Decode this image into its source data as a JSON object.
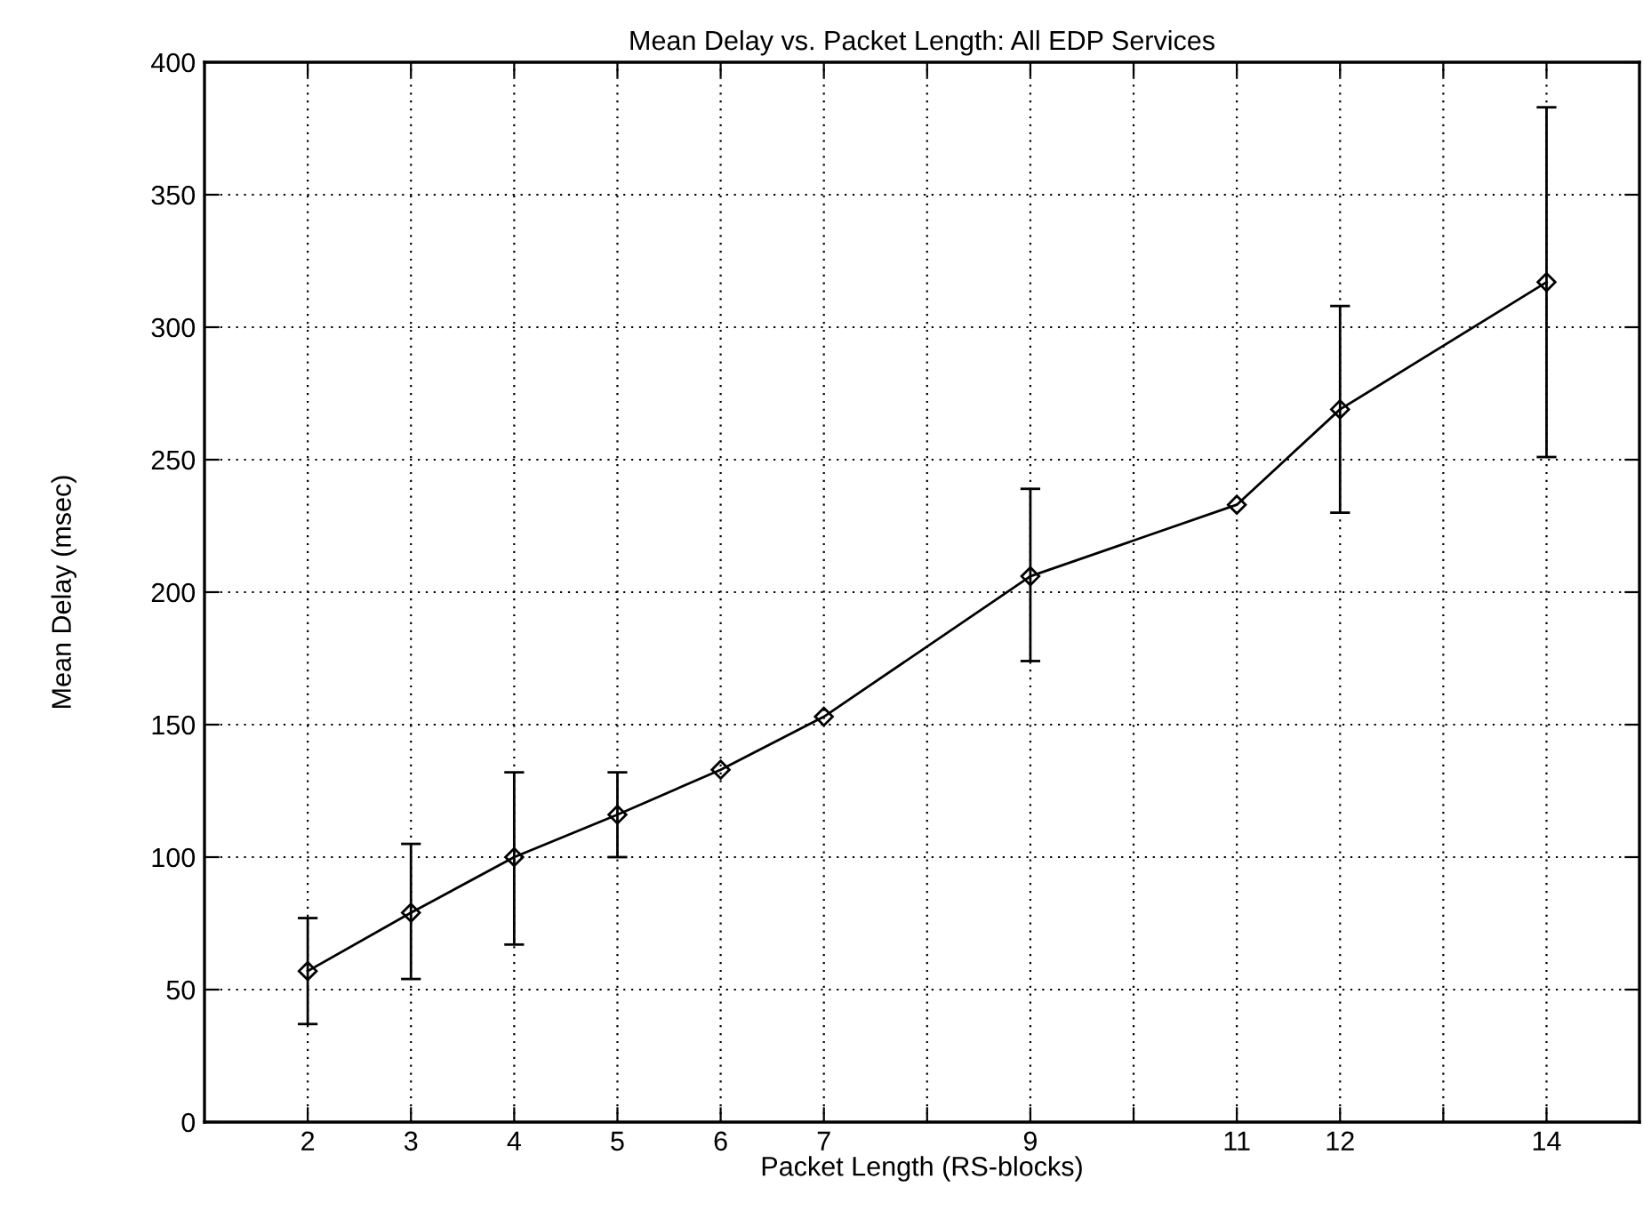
{
  "chart_data": {
    "type": "line",
    "title": "Mean Delay vs. Packet Length: All EDP Services",
    "xlabel": "Packet Length (RS-blocks)",
    "ylabel": "Mean Delay (msec)",
    "x": [
      2,
      3,
      4,
      5,
      6,
      7,
      9,
      11,
      12,
      14
    ],
    "values": [
      57,
      79,
      100,
      116,
      133,
      153,
      206,
      233,
      269,
      317
    ],
    "errors": [
      [
        37,
        77
      ],
      [
        54,
        105
      ],
      [
        67,
        132
      ],
      [
        100,
        132
      ],
      null,
      null,
      [
        174,
        239
      ],
      null,
      [
        230,
        308
      ],
      [
        251,
        383
      ]
    ],
    "color": "#000000",
    "marker": "diamond",
    "line_style": "solid",
    "grid": true,
    "xlim": [
      1,
      14.9
    ],
    "xticks": [
      2,
      3,
      4,
      5,
      6,
      7,
      {
        "value": 8,
        "label": null
      },
      9,
      {
        "value": 10,
        "label": null
      },
      11,
      12,
      {
        "value": 13,
        "label": null
      },
      14
    ],
    "ylim": [
      0,
      400
    ],
    "yticks": [
      0,
      50,
      100,
      150,
      200,
      250,
      300,
      350,
      400
    ]
  }
}
